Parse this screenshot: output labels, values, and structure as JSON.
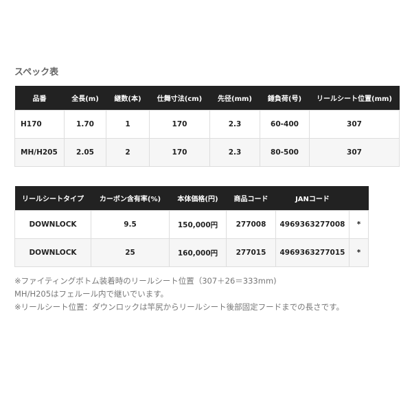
{
  "title": "スペック表",
  "table1": {
    "headers": [
      "品番",
      "全長(m)",
      "継数(本)",
      "仕舞寸法(cm)",
      "先径(mm)",
      "錘負荷(号)",
      "リールシート位置(mm)"
    ],
    "rows": [
      [
        "H170",
        "1.70",
        "1",
        "170",
        "2.3",
        "60-400",
        "307"
      ],
      [
        "MH/H205",
        "2.05",
        "2",
        "170",
        "2.3",
        "80-500",
        "307"
      ]
    ]
  },
  "table2": {
    "headers": [
      "リールシートタイプ",
      "カーボン含有率(%)",
      "本体価格(円)",
      "商品コード",
      "JANコード",
      ""
    ],
    "rows": [
      [
        "DOWNLOCK",
        "9.5",
        "150,000円",
        "277008",
        "4969363277008",
        "*"
      ],
      [
        "DOWNLOCK",
        "25",
        "160,000円",
        "277015",
        "4969363277015",
        "*"
      ]
    ]
  },
  "notes": [
    "※ファイティングボトム装着時のリールシート位置（307＋26＝333mm)",
    "MH/H205はフェルール内で継いでいます。",
    "※リールシート位置：ダウンロックは竿尻からリールシート後部固定フードまでの長さです。"
  ]
}
